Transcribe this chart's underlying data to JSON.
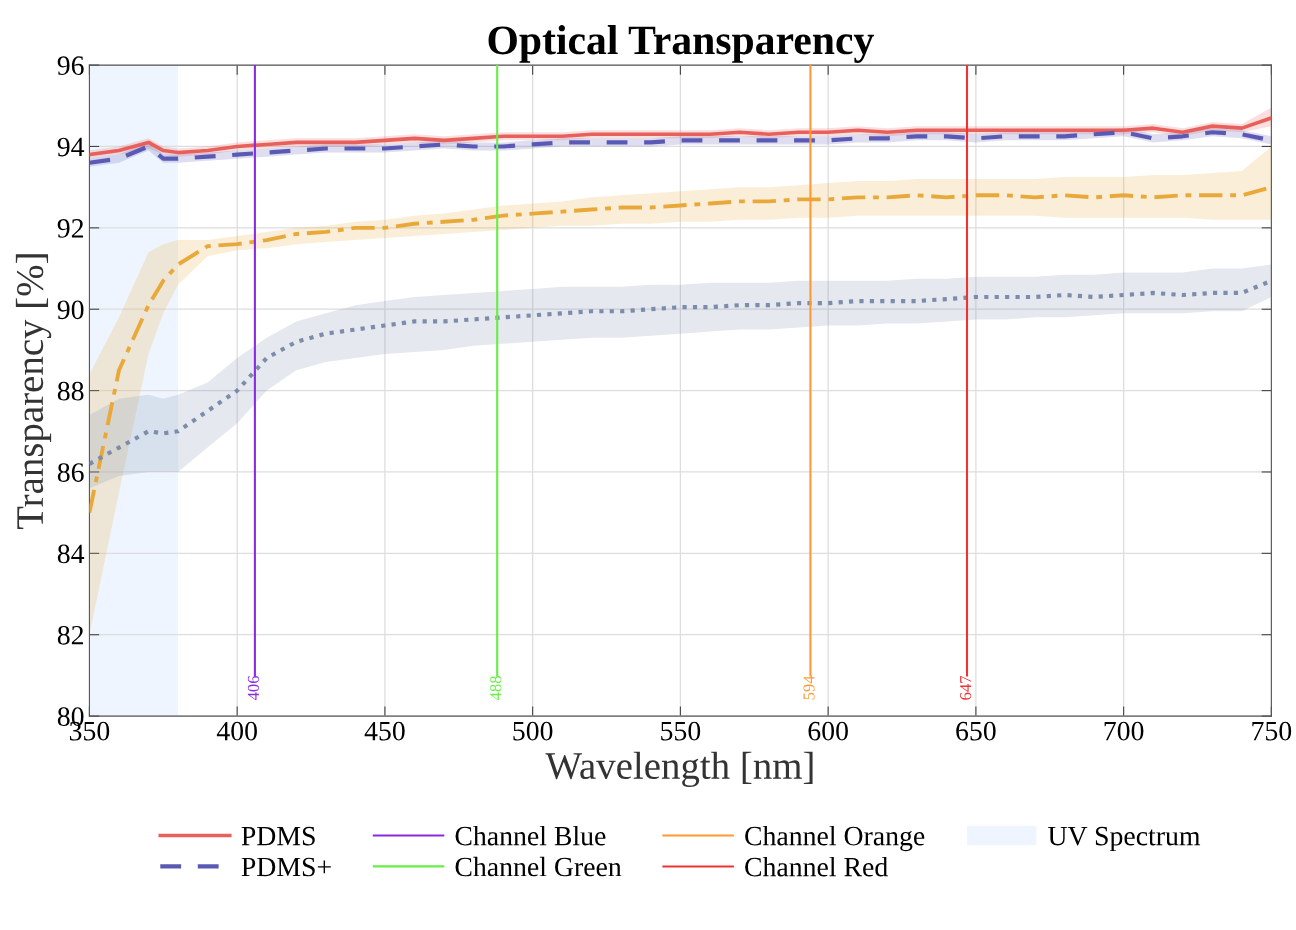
{
  "chart_data": {
    "type": "line",
    "title": "Optical Transparency",
    "xlabel": "Wavelength [nm]",
    "ylabel": "Transparency [%]",
    "x": [
      350,
      360,
      370,
      375,
      380,
      390,
      400,
      410,
      420,
      430,
      440,
      450,
      460,
      470,
      480,
      490,
      500,
      510,
      520,
      530,
      540,
      550,
      560,
      570,
      580,
      590,
      600,
      610,
      620,
      630,
      640,
      650,
      660,
      670,
      680,
      690,
      700,
      710,
      720,
      730,
      740,
      750
    ],
    "series": [
      {
        "name": "PDMS",
        "color": "#e8605c",
        "line_style": "solid",
        "values": [
          93.8,
          93.9,
          94.1,
          93.9,
          93.85,
          93.9,
          94.0,
          94.05,
          94.1,
          94.1,
          94.1,
          94.15,
          94.2,
          94.15,
          94.2,
          94.25,
          94.25,
          94.25,
          94.3,
          94.3,
          94.3,
          94.3,
          94.3,
          94.35,
          94.3,
          94.35,
          94.35,
          94.4,
          94.35,
          94.4,
          94.4,
          94.4,
          94.4,
          94.4,
          94.4,
          94.4,
          94.4,
          94.45,
          94.35,
          94.5,
          94.45,
          94.7
        ],
        "lower": [
          93.7,
          93.8,
          93.95,
          93.8,
          93.75,
          93.8,
          93.9,
          93.95,
          94.0,
          94.0,
          94.0,
          94.05,
          94.1,
          94.05,
          94.1,
          94.15,
          94.15,
          94.15,
          94.2,
          94.2,
          94.2,
          94.2,
          94.2,
          94.25,
          94.2,
          94.25,
          94.25,
          94.3,
          94.25,
          94.3,
          94.3,
          94.3,
          94.3,
          94.3,
          94.3,
          94.3,
          94.3,
          94.35,
          94.25,
          94.4,
          94.35,
          94.5
        ],
        "upper": [
          93.9,
          94.0,
          94.2,
          94.0,
          93.95,
          94.0,
          94.1,
          94.15,
          94.2,
          94.2,
          94.2,
          94.25,
          94.3,
          94.25,
          94.3,
          94.35,
          94.35,
          94.35,
          94.4,
          94.4,
          94.4,
          94.4,
          94.4,
          94.45,
          94.4,
          94.45,
          94.45,
          94.5,
          94.45,
          94.5,
          94.5,
          94.5,
          94.5,
          94.5,
          94.5,
          94.5,
          94.5,
          94.55,
          94.45,
          94.6,
          94.55,
          94.95
        ]
      },
      {
        "name": "PDMS+",
        "color": "#5a5ab4",
        "line_style": "dashed",
        "values": [
          93.6,
          93.7,
          94.0,
          93.7,
          93.7,
          93.75,
          93.8,
          93.85,
          93.9,
          93.95,
          93.95,
          93.95,
          94.0,
          94.05,
          94.0,
          94.0,
          94.05,
          94.1,
          94.1,
          94.1,
          94.1,
          94.15,
          94.15,
          94.15,
          94.15,
          94.15,
          94.15,
          94.2,
          94.2,
          94.25,
          94.25,
          94.2,
          94.25,
          94.25,
          94.25,
          94.3,
          94.35,
          94.2,
          94.25,
          94.35,
          94.3,
          94.15
        ],
        "lower": [
          93.5,
          93.6,
          93.9,
          93.6,
          93.6,
          93.65,
          93.7,
          93.75,
          93.8,
          93.85,
          93.85,
          93.85,
          93.9,
          93.95,
          93.9,
          93.9,
          93.95,
          94.0,
          94.0,
          94.0,
          94.0,
          94.05,
          94.05,
          94.05,
          94.05,
          94.05,
          94.05,
          94.1,
          94.1,
          94.15,
          94.15,
          94.1,
          94.15,
          94.15,
          94.15,
          94.2,
          94.25,
          94.1,
          94.15,
          94.25,
          94.2,
          94.05
        ],
        "upper": [
          93.7,
          93.8,
          94.1,
          93.8,
          93.8,
          93.85,
          93.9,
          93.95,
          94.0,
          94.05,
          94.05,
          94.05,
          94.1,
          94.15,
          94.1,
          94.1,
          94.15,
          94.2,
          94.2,
          94.2,
          94.2,
          94.25,
          94.25,
          94.25,
          94.25,
          94.25,
          94.25,
          94.3,
          94.3,
          94.35,
          94.35,
          94.3,
          94.35,
          94.35,
          94.35,
          94.4,
          94.45,
          94.3,
          94.35,
          94.45,
          94.4,
          94.25
        ]
      },
      {
        "color": "#e9a93a",
        "line_style": "dashdot",
        "values": [
          85.0,
          88.5,
          90.1,
          90.7,
          91.1,
          91.55,
          91.6,
          91.7,
          91.85,
          91.9,
          92.0,
          92.0,
          92.1,
          92.15,
          92.2,
          92.3,
          92.35,
          92.4,
          92.45,
          92.5,
          92.5,
          92.55,
          92.6,
          92.65,
          92.65,
          92.7,
          92.7,
          92.75,
          92.75,
          92.8,
          92.75,
          92.8,
          92.8,
          92.75,
          92.8,
          92.75,
          92.8,
          92.75,
          92.8,
          92.8,
          92.8,
          93.0
        ],
        "lower": [
          82.0,
          85.5,
          88.9,
          89.9,
          90.6,
          91.3,
          91.45,
          91.5,
          91.6,
          91.65,
          91.7,
          91.75,
          91.8,
          91.85,
          91.9,
          91.95,
          92.0,
          92.05,
          92.05,
          92.1,
          92.1,
          92.15,
          92.15,
          92.2,
          92.2,
          92.25,
          92.25,
          92.3,
          92.3,
          92.3,
          92.3,
          92.3,
          92.3,
          92.3,
          92.25,
          92.25,
          92.25,
          92.25,
          92.25,
          92.2,
          92.2,
          92.2
        ],
        "upper": [
          88.4,
          89.8,
          91.4,
          91.6,
          91.7,
          91.7,
          91.8,
          91.9,
          92.0,
          92.05,
          92.15,
          92.2,
          92.3,
          92.35,
          92.45,
          92.55,
          92.6,
          92.65,
          92.75,
          92.8,
          92.85,
          92.9,
          92.95,
          93.0,
          93.0,
          93.05,
          93.1,
          93.15,
          93.15,
          93.2,
          93.2,
          93.2,
          93.2,
          93.2,
          93.25,
          93.25,
          93.25,
          93.3,
          93.3,
          93.35,
          93.4,
          94.0
        ]
      },
      {
        "color": "#7c8cab",
        "line_style": "dotted",
        "values": [
          86.2,
          86.6,
          87.0,
          86.95,
          87.0,
          87.5,
          88.0,
          88.8,
          89.2,
          89.4,
          89.5,
          89.6,
          89.7,
          89.7,
          89.75,
          89.8,
          89.85,
          89.9,
          89.95,
          89.95,
          90.0,
          90.05,
          90.05,
          90.1,
          90.1,
          90.15,
          90.15,
          90.2,
          90.2,
          90.2,
          90.25,
          90.3,
          90.3,
          90.3,
          90.35,
          90.3,
          90.35,
          90.4,
          90.35,
          90.4,
          90.4,
          90.7
        ],
        "lower": [
          85.6,
          85.9,
          86.0,
          86.0,
          86.0,
          86.6,
          87.2,
          88.0,
          88.5,
          88.7,
          88.8,
          88.9,
          88.95,
          89.0,
          89.1,
          89.15,
          89.2,
          89.25,
          89.3,
          89.3,
          89.35,
          89.4,
          89.45,
          89.5,
          89.5,
          89.55,
          89.6,
          89.6,
          89.65,
          89.65,
          89.7,
          89.75,
          89.75,
          89.8,
          89.8,
          89.85,
          89.9,
          89.9,
          89.9,
          89.95,
          89.95,
          90.3
        ],
        "upper": [
          87.4,
          87.8,
          87.9,
          87.8,
          87.9,
          88.2,
          88.8,
          89.3,
          89.7,
          89.9,
          90.1,
          90.2,
          90.3,
          90.35,
          90.4,
          90.45,
          90.5,
          90.55,
          90.55,
          90.55,
          90.6,
          90.6,
          90.65,
          90.65,
          90.65,
          90.7,
          90.7,
          90.7,
          90.7,
          90.75,
          90.75,
          90.8,
          90.8,
          90.8,
          90.85,
          90.85,
          90.9,
          90.9,
          90.9,
          91.0,
          91.0,
          91.1
        ]
      },
      {
        "name": "Channel Blue",
        "color": "#8a2be2",
        "line_style": "solid",
        "x": [
          406,
          406
        ],
        "values": [
          81,
          96
        ]
      },
      {
        "name": "Channel Green",
        "color": "#66ee44",
        "line_style": "solid",
        "x": [
          488,
          488
        ],
        "values": [
          81,
          96
        ]
      },
      {
        "name": "Channel Orange",
        "color": "#ff9933",
        "line_style": "solid",
        "x": [
          594,
          594
        ],
        "values": [
          81,
          96
        ]
      },
      {
        "name": "Channel Red",
        "color": "#ee3333",
        "line_style": "solid",
        "x": [
          647,
          647
        ],
        "values": [
          81,
          96
        ]
      }
    ],
    "bands": [
      {
        "axis": "x",
        "from": 350,
        "to": 380,
        "label": "UV Spectrum",
        "color": "#eef5fe"
      }
    ],
    "annotations": [
      {
        "text": "406",
        "x": 406,
        "y": 81
      },
      {
        "text": "488",
        "x": 488,
        "y": 81
      },
      {
        "text": "594",
        "x": 594,
        "y": 81
      },
      {
        "text": "647",
        "x": 647,
        "y": 81
      }
    ],
    "xlim": [
      350,
      750
    ],
    "xticks": [
      350,
      400,
      450,
      500,
      550,
      600,
      650,
      700,
      750
    ],
    "ylim": [
      80,
      96
    ],
    "yticks": [
      80,
      82,
      84,
      86,
      88,
      90,
      92,
      94,
      96
    ],
    "grid": true,
    "legend": "bottom"
  }
}
